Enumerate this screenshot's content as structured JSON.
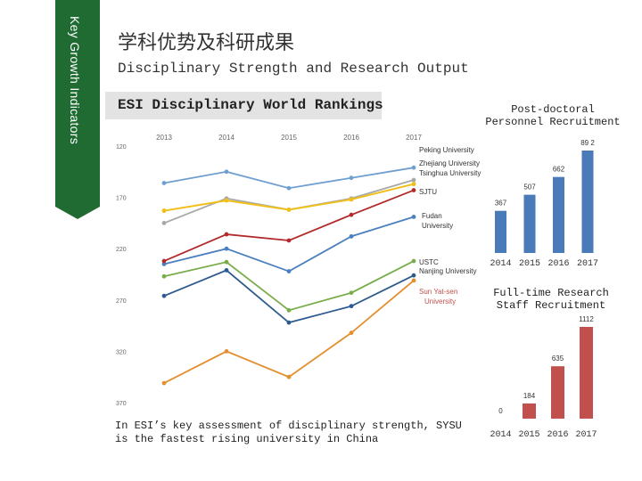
{
  "side_label": "Key Growth Indicators",
  "title_cn": "学科优势及科研成果",
  "title_en": "Disciplinary Strength and Research Output",
  "esi_label": "ESI Disciplinary World Rankings",
  "chart_note": "In ESI’s key assessment of disciplinary strength, SYSU is the fastest rising university in China",
  "post_title": "Post-doctoral Personnel Recruitment",
  "staff_title": "Full-time Research Staff Recruitment",
  "chart_data": [
    {
      "type": "line",
      "x": [
        "2013",
        "2014",
        "2015",
        "2016",
        "2017"
      ],
      "ylim": [
        120,
        370
      ],
      "y_inverted": true,
      "y_ticks": [
        "120",
        "170",
        "220",
        "270",
        "320",
        "370"
      ],
      "grid": false,
      "series": [
        {
          "name": "Peking University",
          "color": "#6f9fd0",
          "values": [
            156,
            145,
            161,
            151,
            141
          ]
        },
        {
          "name": "Zhejiang University",
          "color": "#a8a8a8",
          "values": [
            195,
            171,
            182,
            171,
            153
          ]
        },
        {
          "name": "Tsinghua University",
          "color": "#e6c23a",
          "values": [
            183,
            173,
            182,
            172,
            157
          ]
        },
        {
          "name": "SJTU",
          "color": "#f0c018",
          "values": [
            183,
            173,
            182,
            172,
            157
          ]
        },
        {
          "name": "Fudan University",
          "color": "#4b7fbd",
          "values": [
            235,
            220,
            242,
            208,
            189
          ]
        },
        {
          "name": "USTC",
          "color": "#b22a2a",
          "values": [
            232,
            206,
            212,
            187,
            163
          ]
        },
        {
          "name": "Nanjing University",
          "color": "#79ad4a",
          "values": [
            247,
            233,
            280,
            263,
            232
          ]
        },
        {
          "name": "",
          "color": "#2e5b8f",
          "values": [
            266,
            241,
            292,
            276,
            246
          ]
        },
        {
          "name": "Sun Yat-sen University",
          "color": "#e48f2f",
          "values": [
            351,
            320,
            345,
            302,
            251
          ]
        }
      ]
    },
    {
      "type": "bar",
      "title": "Post-doctoral Personnel Recruitment",
      "categories": [
        "2014",
        "2015",
        "2016",
        "2017"
      ],
      "values": [
        367,
        507,
        662,
        892
      ],
      "value_labels": [
        "367",
        "507",
        "662",
        "89 2"
      ],
      "color": "#4a7ab8",
      "ylim": [
        0,
        892
      ]
    },
    {
      "type": "bar",
      "title": "Full-time Research Staff Recruitment",
      "categories": [
        "2014",
        "2015",
        "2016",
        "2017"
      ],
      "values": [
        0,
        184,
        635,
        1112
      ],
      "value_labels": [
        "0",
        "184",
        "635",
        "1112"
      ],
      "color": "#c0504d",
      "ylim": [
        0,
        1112
      ]
    }
  ]
}
